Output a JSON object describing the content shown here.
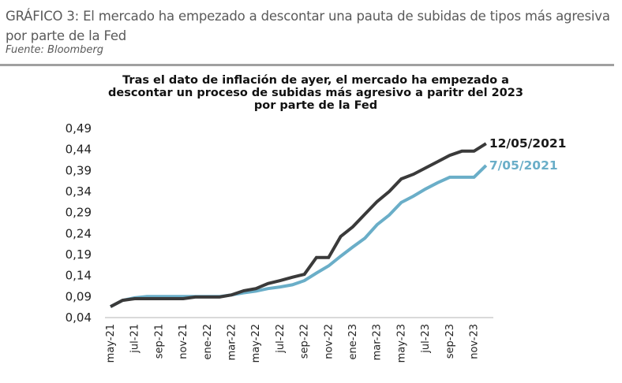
{
  "header": {
    "caption": "GRÁFICO 3: El mercado ha empezado a descontar una pauta de subidas de tipos más agresiva por parte de la Fed",
    "source": "Fuente: Bloomberg"
  },
  "chart_data": {
    "type": "line",
    "title": "Tras el dato de inflación de ayer, el mercado ha empezado a descontar un proceso de subidas más agresivo a paritr del 2023 por parte de la Fed",
    "xlabel": "",
    "ylabel": "",
    "ylim": [
      0.04,
      0.49
    ],
    "y_ticks": [
      "0,04",
      "0,09",
      "0,14",
      "0,19",
      "0,24",
      "0,29",
      "0,34",
      "0,39",
      "0,44",
      "0,49"
    ],
    "x_tick_labels": [
      "may-21",
      "jul-21",
      "sep-21",
      "nov-21",
      "ene-22",
      "mar-22",
      "may-22",
      "jul-22",
      "sep-22",
      "nov-22",
      "ene-23",
      "mar-23",
      "may-23",
      "jul-23",
      "sep-23",
      "nov-23"
    ],
    "x": [
      "may-21",
      "jun-21",
      "jul-21",
      "ago-21",
      "sep-21",
      "oct-21",
      "nov-21",
      "dic-21",
      "ene-22",
      "feb-22",
      "mar-22",
      "abr-22",
      "may-22",
      "jun-22",
      "jul-22",
      "ago-22",
      "sep-22",
      "oct-22",
      "nov-22",
      "dic-22",
      "ene-23",
      "feb-23",
      "mar-23",
      "abr-23",
      "may-23",
      "jun-23",
      "jul-23",
      "ago-23",
      "sep-23",
      "oct-23",
      "nov-23",
      "dic-23"
    ],
    "grid": false,
    "legend": "end-of-line labels",
    "series": [
      {
        "name": "12/05/2021",
        "color": "#3a3a3a",
        "values": [
          0.066,
          0.081,
          0.085,
          0.085,
          0.085,
          0.085,
          0.085,
          0.089,
          0.089,
          0.089,
          0.094,
          0.104,
          0.109,
          0.121,
          0.128,
          0.136,
          0.143,
          0.183,
          0.183,
          0.233,
          0.256,
          0.286,
          0.316,
          0.34,
          0.37,
          0.381,
          0.396,
          0.411,
          0.426,
          0.436,
          0.436,
          0.454
        ]
      },
      {
        "name": "7/05/2021",
        "color": "#6aaec8",
        "values": [
          0.066,
          0.081,
          0.087,
          0.09,
          0.09,
          0.09,
          0.09,
          0.09,
          0.09,
          0.09,
          0.094,
          0.099,
          0.103,
          0.109,
          0.113,
          0.118,
          0.128,
          0.146,
          0.163,
          0.186,
          0.208,
          0.229,
          0.261,
          0.284,
          0.314,
          0.329,
          0.346,
          0.361,
          0.374,
          0.374,
          0.374,
          0.402
        ]
      }
    ]
  }
}
